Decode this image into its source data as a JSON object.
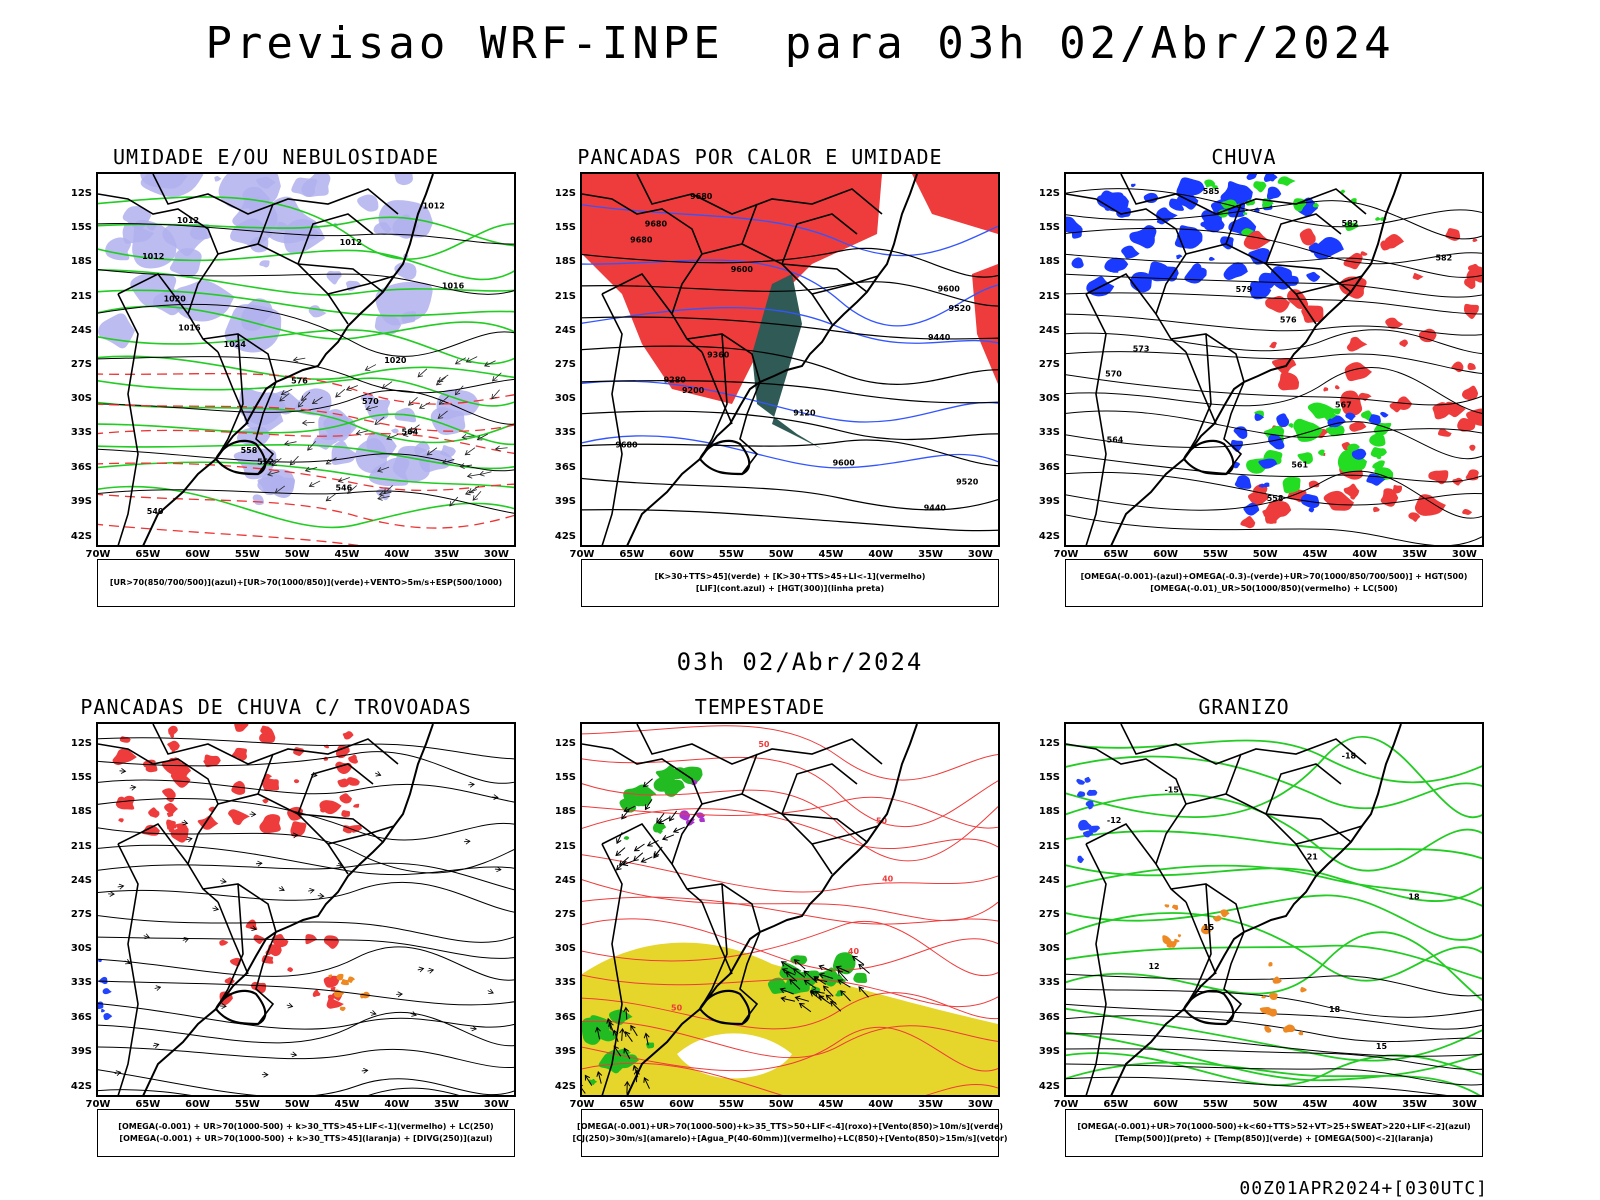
{
  "header": {
    "title": "Previsao WRF-INPE  para 03h 02/Abr/2024",
    "mid_title": "03h 02/Abr/2024",
    "footer": "00Z01APR2024+[030UTC]"
  },
  "axes": {
    "lat_labels": [
      "12S",
      "15S",
      "18S",
      "21S",
      "24S",
      "27S",
      "30S",
      "33S",
      "36S",
      "39S",
      "42S"
    ],
    "lon_labels": [
      "70W",
      "65W",
      "60W",
      "55W",
      "50W",
      "45W",
      "40W",
      "35W",
      "30W"
    ]
  },
  "panels": [
    {
      "id": "umidade",
      "title": "UMIDADE E/OU NEBULOSIDADE",
      "legend": [
        "[UR>70(850/700/500)](azul)+[UR>70(1000/850)](verde)+VENTO>5m/s+ESP(500/1000)"
      ],
      "contour_labels": [
        "1012",
        "1012",
        "1012",
        "1012",
        "1016",
        "1020",
        "1016",
        "1024",
        "1020",
        "576",
        "570",
        "564",
        "558",
        "552",
        "546",
        "540"
      ],
      "colors": {
        "shading": "#b0b0ee",
        "contours": "#22cc22",
        "isobars": "#000000",
        "thickness": "#ee3333"
      }
    },
    {
      "id": "pancadas-calor",
      "title": "PANCADAS POR CALOR E UMIDADE",
      "legend": [
        "[K>30+TTS>45](verde) + [K>30+TTS>45+LI<-1](vermelho)",
        "[LIF](cont.azul) + [HGT(300)](linha preta)"
      ],
      "contour_labels": [
        "9680",
        "9680",
        "9680",
        "9600",
        "9600",
        "9520",
        "9440",
        "9360",
        "9280",
        "9200",
        "9120",
        "9680",
        "9600",
        "9520",
        "9440"
      ],
      "colors": {
        "red_area": "#ee3b3b",
        "green_area": "#2f5a55",
        "lif": "#3355ff",
        "hgt": "#000000"
      }
    },
    {
      "id": "chuva",
      "title": "CHUVA",
      "legend": [
        "[OMEGA(-0.001)-(azul)+OMEGA(-0.3)-(verde)+UR>70(1000/850/700/500)] + HGT(500)",
        "[OMEGA(-0.01)_UR>50(1000/850)(vermelho) + LC(500)"
      ],
      "contour_labels": [
        "585",
        "582",
        "582",
        "579",
        "576",
        "573",
        "570",
        "567",
        "564",
        "561",
        "558"
      ],
      "colors": {
        "blue": "#1a3aff",
        "green": "#22dd22",
        "red": "#ee3b3b"
      }
    },
    {
      "id": "trovoadas",
      "title": "PANCADAS DE CHUVA C/ TROVOADAS",
      "legend": [
        "[OMEGA(-0.001) + UR>70(1000-500) + k>30_TTS>45+LIF<-1](vermelho) + LC(250)",
        "[OMEGA(-0.001) + UR>70(1000-500) + k>30_TTS>45](laranja) + [DIVG(250)](azul)"
      ],
      "colors": {
        "red": "#ee3b3b",
        "orange": "#ee8822",
        "blue": "#2244ff"
      }
    },
    {
      "id": "tempestade",
      "title": "TEMPESTADE",
      "legend": [
        "[OMEGA(-0.001)+UR>70(1000-500)+k>35_TTS>50+LIF<-4](roxo)+[Vento(850)>10m/s](verde)",
        "[CJ(250)>30m/s](amarelo)+[Agua_P(40-60mm)](vermelho)+LC(850)+[Vento(850)>15m/s](vetor)"
      ],
      "contour_labels": [
        "50",
        "50",
        "40",
        "40",
        "50"
      ],
      "colors": {
        "yellow": "#e6d52a",
        "green": "#22bb22",
        "red": "#ee3b3b",
        "purple": "#aa33cc"
      }
    },
    {
      "id": "granizo",
      "title": "GRANIZO",
      "legend": [
        "[OMEGA(-0.001)+UR>70(1000-500)+k<60+TTS>52+VT>25+SWEAT>220+LIF<-2](azul)",
        "[Temp(500)](preto) + [Temp(850)](verde) + [OMEGA(500)<-2](laranja)"
      ],
      "contour_labels": [
        "-18",
        "-15",
        "-12",
        "21",
        "18",
        "15",
        "12",
        "18",
        "15"
      ],
      "colors": {
        "green": "#22cc22",
        "orange": "#ee8822",
        "blue": "#2244ff",
        "black": "#000000"
      }
    }
  ]
}
